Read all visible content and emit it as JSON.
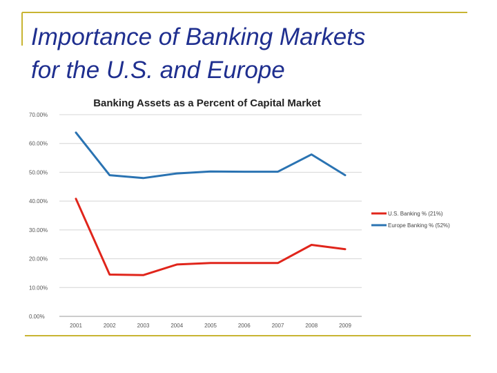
{
  "slide": {
    "title_line1": "Importance of Banking Markets",
    "title_line2": "for the U.S. and Europe"
  },
  "chart_data": {
    "type": "line",
    "title": "Banking Assets as a Percent of Capital Market",
    "xlabel": "",
    "ylabel": "",
    "x": [
      "2001",
      "2002",
      "2003",
      "2004",
      "2005",
      "2006",
      "2007",
      "2008",
      "2009"
    ],
    "ylim": [
      0,
      70
    ],
    "yticks": [
      "0.00%",
      "10.00%",
      "20.00%",
      "30.00%",
      "40.00%",
      "50.00%",
      "60.00%",
      "70.00%"
    ],
    "grid": true,
    "legend_position": "right",
    "series": [
      {
        "name": "U.S. Banking % (21%)",
        "color": "#e0251b",
        "values": [
          40.8,
          14.5,
          14.3,
          18.0,
          18.5,
          18.5,
          18.5,
          24.8,
          23.3
        ]
      },
      {
        "name": "Europe Banking % (52%)",
        "color": "#2a73b2",
        "values": [
          63.8,
          49.0,
          48.0,
          49.6,
          50.3,
          50.2,
          50.2,
          56.2,
          49.0
        ]
      }
    ]
  }
}
